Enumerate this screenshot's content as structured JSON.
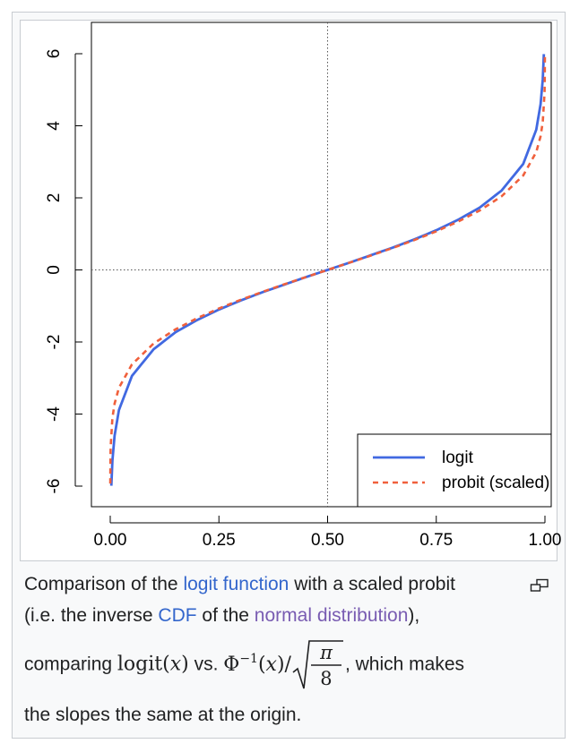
{
  "chart_data": {
    "type": "line",
    "title": "",
    "xlabel": "",
    "ylabel": "",
    "xlim": [
      0,
      1
    ],
    "ylim": [
      -6,
      6
    ],
    "xticks": [
      "0.00",
      "0.25",
      "0.50",
      "0.75",
      "1.00"
    ],
    "yticks": [
      "-6",
      "-4",
      "-2",
      "0",
      "2",
      "4",
      "6"
    ],
    "reference_lines": {
      "x": 0.5,
      "y": 0,
      "style": "dotted"
    },
    "legend_position": "bottom-right",
    "series": [
      {
        "name": "logit",
        "style": "solid",
        "color": "#4169e1",
        "x": [
          0.0025,
          0.005,
          0.01,
          0.02,
          0.05,
          0.1,
          0.15,
          0.2,
          0.25,
          0.3,
          0.35,
          0.4,
          0.45,
          0.5,
          0.55,
          0.6,
          0.65,
          0.7,
          0.75,
          0.8,
          0.85,
          0.9,
          0.95,
          0.98,
          0.99,
          0.995,
          0.9975
        ],
        "y": [
          -5.99,
          -5.29,
          -4.6,
          -3.89,
          -2.94,
          -2.2,
          -1.73,
          -1.39,
          -1.1,
          -0.85,
          -0.62,
          -0.41,
          -0.2,
          0.0,
          0.2,
          0.41,
          0.62,
          0.85,
          1.1,
          1.39,
          1.73,
          2.2,
          2.94,
          3.89,
          4.6,
          5.29,
          5.99
        ]
      },
      {
        "name": "probit (scaled)",
        "style": "dashed",
        "color": "#f0603c",
        "x": [
          0.0001,
          0.0005,
          0.001,
          0.005,
          0.01,
          0.02,
          0.05,
          0.1,
          0.15,
          0.2,
          0.25,
          0.3,
          0.35,
          0.4,
          0.45,
          0.5,
          0.55,
          0.6,
          0.65,
          0.7,
          0.75,
          0.8,
          0.85,
          0.9,
          0.95,
          0.98,
          0.99,
          0.995,
          0.999,
          0.9995,
          0.9999
        ],
        "y": [
          -5.93,
          -5.2,
          -4.9,
          -4.11,
          -3.71,
          -3.27,
          -2.62,
          -2.04,
          -1.65,
          -1.34,
          -1.07,
          -0.83,
          -0.61,
          -0.4,
          -0.2,
          0.0,
          0.2,
          0.4,
          0.61,
          0.83,
          1.07,
          1.34,
          1.65,
          2.04,
          2.62,
          3.27,
          3.71,
          4.11,
          4.9,
          5.2,
          5.93
        ]
      }
    ]
  },
  "caption": {
    "line1_pre": "Comparison of the ",
    "link_logit": "logit function",
    "line1_post": " with a scaled probit",
    "line2_pre": "(i.e. the inverse ",
    "link_cdf": "CDF",
    "line2_mid": " of the ",
    "link_normal": "normal distribution",
    "line2_post": "),",
    "line3_pre": "comparing ",
    "math_logit": "logit",
    "math_var": "x",
    "vs": " vs. ",
    "math_phi": "Φ",
    "math_exp": "−1",
    "math_pi": "π",
    "math_eight": "8",
    "line3_post": ", which makes",
    "line4": "the slopes the same at the origin."
  },
  "icons": {
    "enlarge": "enlarge-icon"
  }
}
